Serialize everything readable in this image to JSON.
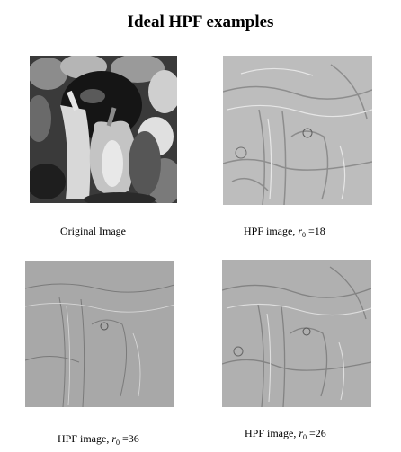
{
  "title": "Ideal HPF examples",
  "panels": [
    {
      "id": "original",
      "caption_prefix": "Original Image",
      "symbol": "",
      "subscript": "",
      "equals": "",
      "value": ""
    },
    {
      "id": "hpf18",
      "caption_prefix": "HPF image,",
      "symbol": "r",
      "subscript": "0",
      "equals": "=",
      "value": "18"
    },
    {
      "id": "hpf36",
      "caption_prefix": "HPF image,",
      "symbol": "r",
      "subscript": "0",
      "equals": "=",
      "value": "36"
    },
    {
      "id": "hpf26",
      "caption_prefix": "HPF image,",
      "symbol": "r",
      "subscript": "0",
      "equals": "=",
      "value": "26"
    }
  ]
}
